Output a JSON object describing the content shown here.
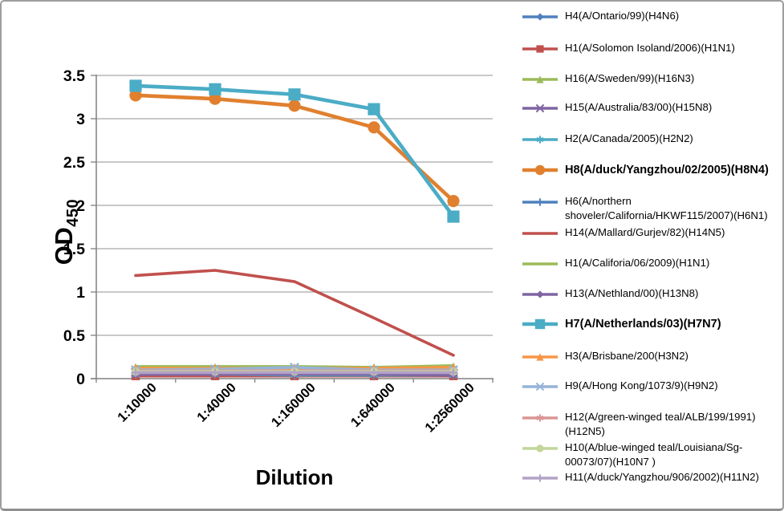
{
  "chart_data": {
    "type": "line",
    "title": "",
    "xlabel": "Dilution",
    "ylabel": "OD",
    "ylabel_sub": "450",
    "categories": [
      "1:10000",
      "1:40000",
      "1:160000",
      "1:640000",
      "1:2560000"
    ],
    "ylim": [
      0,
      3.5
    ],
    "ytick_values": [
      3.5,
      3,
      2.5,
      2,
      1.5,
      1,
      0.5,
      0
    ],
    "ytick_labels": [
      "3.5",
      "3",
      "2.5",
      "2",
      "1.5",
      "1",
      "0.5",
      "0"
    ],
    "grid": "horizontal-major",
    "legend_position": "right",
    "series": [
      {
        "name": "H4(A/Ontario/99)(H4N6)",
        "color": "#4F81BD",
        "marker": "diamond",
        "bold": false,
        "values": [
          0.06,
          0.06,
          0.06,
          0.06,
          0.05
        ]
      },
      {
        "name": "H1(A/Solomon Isoland/2006)(H1N1)",
        "color": "#C0504D",
        "marker": "square",
        "bold": false,
        "values": [
          0.03,
          0.03,
          0.03,
          0.03,
          0.03
        ]
      },
      {
        "name": "H16(A/Sweden/99)(H16N3)",
        "color": "#9BBB59",
        "marker": "triangle",
        "bold": false,
        "values": [
          0.13,
          0.13,
          0.13,
          0.13,
          0.14
        ]
      },
      {
        "name": "H15(A/Australia/83/00)(H15N8)",
        "color": "#8064A2",
        "marker": "x",
        "bold": false,
        "values": [
          0.07,
          0.07,
          0.07,
          0.06,
          0.06
        ]
      },
      {
        "name": "H2(A/Canada/2005)(H2N2)",
        "color": "#4BACC6",
        "marker": "asterisk",
        "bold": false,
        "values": [
          0.05,
          0.05,
          0.04,
          0.04,
          0.04
        ]
      },
      {
        "name": "H8(A/duck/Yangzhou/02/2005)(H8N4)",
        "color": "#E0802F",
        "marker": "circle",
        "bold": true,
        "values": [
          3.27,
          3.23,
          3.15,
          2.9,
          2.05
        ]
      },
      {
        "name": "H6(A/northern shoveler/California/HKWF115/2007)(H6N1)",
        "color": "#4F81BD",
        "marker": "plus",
        "bold": false,
        "values": [
          0.06,
          0.06,
          0.05,
          0.05,
          0.05
        ]
      },
      {
        "name": "H14(A/Mallard/Gurjev/82)(H14N5)",
        "color": "#C0504D",
        "marker": "none",
        "bold": false,
        "values": [
          1.19,
          1.25,
          1.12,
          0.7,
          0.27
        ]
      },
      {
        "name": "H1(A/Califoria/06/2009)(H1N1)",
        "color": "#9BBB59",
        "marker": "none",
        "bold": false,
        "values": [
          0.14,
          0.14,
          0.14,
          0.13,
          0.15
        ]
      },
      {
        "name": "H13(A/Nethland/00)(H13N8)",
        "color": "#8064A2",
        "marker": "diamond",
        "bold": false,
        "values": [
          0.05,
          0.05,
          0.05,
          0.05,
          0.04
        ]
      },
      {
        "name": "H7(A/Netherlands/03)(H7N7)",
        "color": "#4BACC6",
        "marker": "square",
        "bold": true,
        "values": [
          3.38,
          3.34,
          3.28,
          3.11,
          1.87
        ]
      },
      {
        "name": "H3(A/Brisbane/200(H3N2)",
        "color": "#F79646",
        "marker": "triangle",
        "bold": false,
        "values": [
          0.12,
          0.12,
          0.12,
          0.12,
          0.13
        ]
      },
      {
        "name": "H9(A/Hong Kong/1073/9)(H9N2)",
        "color": "#95B3D7",
        "marker": "x",
        "bold": false,
        "values": [
          0.1,
          0.11,
          0.13,
          0.1,
          0.1
        ]
      },
      {
        "name": "H12(A/green-winged teal/ALB/199/1991)(H12N5)",
        "color": "#D99694",
        "marker": "asterisk",
        "bold": false,
        "values": [
          0.09,
          0.09,
          0.09,
          0.09,
          0.09
        ]
      },
      {
        "name": "H10(A/blue-winged teal/Louisiana/Sg-00073/07)(H10N7 )",
        "color": "#C3D69B",
        "marker": "circle",
        "bold": false,
        "values": [
          0.08,
          0.08,
          0.08,
          0.08,
          0.08
        ]
      },
      {
        "name": "H11(A/duck/Yangzhou/906/2002)(H11N2)",
        "color": "#B3A2C7",
        "marker": "plus",
        "bold": false,
        "values": [
          0.07,
          0.07,
          0.07,
          0.07,
          0.07
        ]
      }
    ]
  },
  "colors": {
    "gridline": "#A6A6A6",
    "axis": "#808080",
    "text": "#000000",
    "frame_border": "#9E9E9E"
  }
}
